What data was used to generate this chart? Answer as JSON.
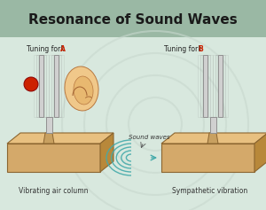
{
  "title": "Resonance of Sound Waves",
  "title_fontsize": 11,
  "title_bg_color": "#9ab8a4",
  "bg_color": "#d8e8de",
  "label_left_plain": "Tuning fork ",
  "label_left_bold": "A",
  "label_right_plain": "Tuning fork ",
  "label_right_bold": "B",
  "caption_left": "Vibrating air column",
  "caption_right": "Sympathetic vibration",
  "sound_waves_label": "Sound waves",
  "box_color": "#d4a96a",
  "box_top_color": "#e8c080",
  "box_right_color": "#b8883a",
  "box_edge_color": "#8b6530",
  "fork_color": "#d0d0d0",
  "fork_edge_color": "#909090",
  "ball_color": "#cc2200",
  "wave_color": "#44aaaa",
  "knob_color": "#c8a060",
  "watermark_color": "#c8d8ce",
  "label_fontsize": 5.5,
  "caption_fontsize": 5.5,
  "wave_label_fontsize": 5.0
}
